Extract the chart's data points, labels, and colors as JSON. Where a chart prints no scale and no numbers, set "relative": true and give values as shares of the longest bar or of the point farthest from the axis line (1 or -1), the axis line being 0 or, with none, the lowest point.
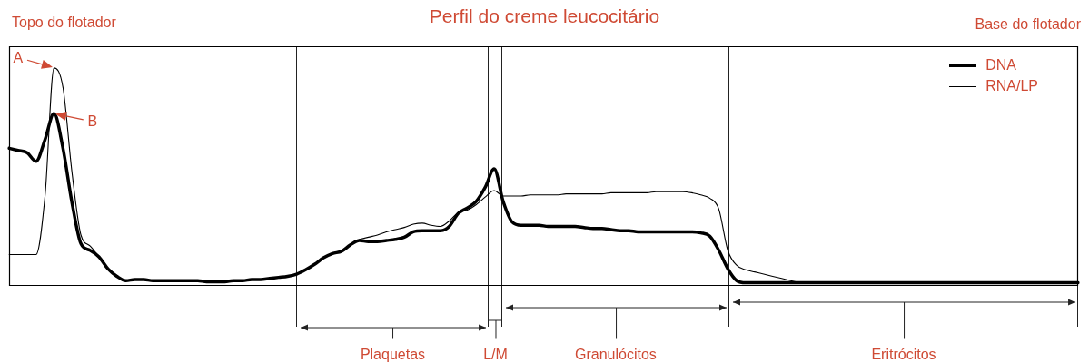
{
  "chart_data": {
    "type": "line",
    "title": "Perfil do creme leucocitário",
    "annotations": [
      "Topo do flotador",
      "Base do flotador",
      "A",
      "B",
      "Plaquetas",
      "L/M",
      "Granulócitos",
      "Eritrócitos"
    ],
    "relative": true,
    "marker": "none",
    "legend": "top right",
    "categories": [
      null,
      null,
      null,
      null,
      null,
      null,
      null,
      null,
      null,
      null,
      null,
      null,
      null,
      null,
      null,
      null,
      null,
      null,
      null,
      null,
      null,
      null,
      null,
      null,
      null,
      null,
      null,
      null,
      null,
      null,
      null,
      null,
      null,
      null,
      null,
      null,
      null,
      null,
      null,
      null,
      null,
      null,
      null,
      null,
      null,
      null,
      null,
      null,
      null,
      null,
      null,
      null,
      null,
      null,
      null,
      null,
      null,
      null,
      null,
      null,
      null,
      null,
      null,
      null,
      null,
      null,
      null,
      null,
      null,
      null,
      null,
      null,
      null,
      null,
      null,
      null,
      null,
      null,
      null,
      null,
      null,
      null,
      null,
      null,
      null,
      null,
      null,
      null,
      null,
      null,
      null,
      null,
      null,
      null,
      null,
      null,
      null,
      null,
      null,
      null,
      null,
      null,
      null,
      null,
      null,
      null,
      null,
      null,
      null,
      null,
      null,
      null,
      null,
      null,
      null,
      null,
      null,
      null,
      null,
      null
    ],
    "series": [
      {
        "name": "DNA",
        "color": "#000000",
        "values": [
          0.63,
          0.62,
          0.61,
          0.57,
          0.67,
          0.79,
          0.63,
          0.38,
          0.19,
          0.16,
          0.13,
          0.075,
          0.04,
          0.02,
          0.025,
          0.025,
          0.02,
          0.02,
          0.02,
          0.02,
          0.02,
          0.02,
          0.015,
          0.015,
          0.015,
          0.02,
          0.02,
          0.025,
          0.025,
          0.03,
          0.035,
          0.04,
          0.05,
          0.07,
          0.095,
          0.125,
          0.145,
          0.155,
          0.185,
          0.205,
          0.2,
          0.2,
          0.205,
          0.21,
          0.22,
          0.245,
          0.25,
          0.25,
          0.25,
          0.27,
          0.33,
          0.355,
          0.385,
          0.45,
          0.535,
          0.385,
          0.29,
          0.275,
          0.275,
          0.275,
          0.27,
          0.27,
          0.27,
          0.27,
          0.265,
          0.26,
          0.26,
          0.255,
          0.25,
          0.25,
          0.245,
          0.245,
          0.245,
          0.245,
          0.245,
          0.245,
          0.245,
          0.24,
          0.225,
          0.16,
          0.075,
          0.02,
          0.01,
          0.01,
          0.01,
          0.01,
          0.01,
          0.01,
          0.01,
          0.01,
          0.01,
          0.01,
          0.01,
          0.01,
          0.01,
          0.01,
          0.01,
          0.01,
          0.01,
          0.01,
          0.01,
          0.01,
          0.01,
          0.01,
          0.01,
          0.01,
          0.01,
          0.01,
          0.01,
          0.01,
          0.01,
          0.01,
          0.01,
          0.01,
          0.01,
          0.01,
          0.01,
          0.01,
          0.01,
          0.01
        ]
      },
      {
        "name": "RNA/LP",
        "color": "#000000",
        "values": [
          0.14,
          0.14,
          0.14,
          0.14,
          0.41,
          1,
          0.91,
          0.52,
          0.23,
          0.18,
          0.13,
          null,
          null,
          null,
          null,
          null,
          null,
          null,
          null,
          null,
          null,
          null,
          null,
          null,
          null,
          null,
          null,
          null,
          null,
          null,
          null,
          null,
          null,
          null,
          null,
          null,
          null,
          null,
          null,
          0.21,
          0.22,
          0.23,
          0.245,
          0.255,
          0.265,
          0.28,
          0.285,
          0.275,
          0.27,
          0.295,
          0.335,
          0.345,
          0.37,
          0.405,
          0.435,
          0.41,
          0.41,
          0.41,
          0.415,
          0.415,
          0.415,
          0.415,
          0.42,
          0.42,
          0.42,
          0.42,
          0.42,
          0.425,
          0.425,
          0.425,
          0.425,
          0.425,
          0.43,
          0.43,
          0.43,
          0.43,
          0.425,
          0.415,
          0.4,
          0.35,
          0.16,
          0.09,
          0.07,
          0.06,
          0.05,
          0.04,
          0.03,
          0.02,
          0.01,
          null,
          null,
          null,
          null,
          null,
          null,
          null,
          null,
          null,
          null,
          null,
          null,
          null,
          null,
          null,
          null,
          null,
          null,
          null,
          null,
          null,
          null,
          null,
          null,
          null,
          null,
          null,
          null,
          null,
          null,
          null
        ]
      }
    ]
  }
}
